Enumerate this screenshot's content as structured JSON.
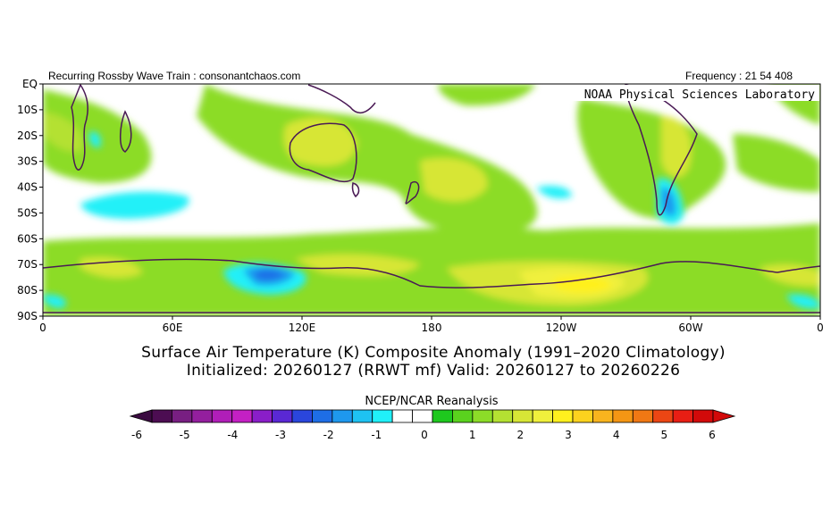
{
  "header": {
    "left": "Recurring Rossby Wave Train : consonantchaos.com",
    "right": "Frequency : 21 54 408"
  },
  "map": {
    "credit": "NOAA Physical Sciences Laboratory",
    "lat_labels": [
      "EQ",
      "10S",
      "20S",
      "30S",
      "40S",
      "50S",
      "60S",
      "70S",
      "80S",
      "90S"
    ],
    "lon_labels": [
      "0",
      "60E",
      "120E",
      "180",
      "120W",
      "60W",
      "0"
    ]
  },
  "titles": {
    "line1": "Surface Air Temperature (K) Composite Anomaly (1991–2020 Climatology)",
    "line2": "Initialized: 20260127 (RRWT mf) Valid: 20260127 to 20260226"
  },
  "colorbar": {
    "title": "NCEP/NCAR Reanalysis",
    "tick_labels": [
      "-6",
      "-5",
      "-4",
      "-3",
      "-2",
      "-1",
      "0",
      "1",
      "2",
      "3",
      "4",
      "5",
      "6"
    ],
    "colors": [
      "#4c0d52",
      "#781f82",
      "#941f9e",
      "#b01eb8",
      "#c420c4",
      "#8a1ec8",
      "#5a28d4",
      "#2a46dc",
      "#1e6ee6",
      "#1e98ee",
      "#1ec2f2",
      "#20f0f8",
      "#ffffff",
      "#ffffff",
      "#1ec81e",
      "#5ad21e",
      "#8cdc28",
      "#b4e132",
      "#d7e636",
      "#f0f03c",
      "#fff01e",
      "#fcd21e",
      "#f8b41e",
      "#f49614",
      "#f07814",
      "#ec4614",
      "#e81e14",
      "#d20a0a"
    ]
  }
}
